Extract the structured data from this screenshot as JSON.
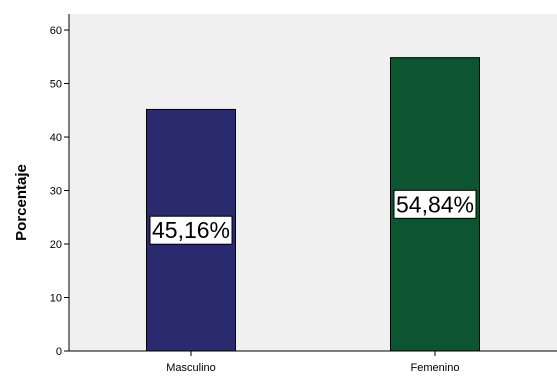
{
  "chart_data": {
    "type": "bar",
    "categories": [
      "Masculino",
      "Femenino"
    ],
    "values": [
      45.16,
      54.84
    ],
    "data_labels": [
      "45,16%",
      "54,84%"
    ],
    "xlabel": "",
    "ylabel": "Porcentaje",
    "ylim": [
      0,
      63
    ],
    "yticks": [
      0,
      10,
      20,
      30,
      40,
      50,
      60
    ],
    "grid": false,
    "colors": {
      "plot_background": "#f0f0f0",
      "bars": [
        "#2a2a6e",
        "#0d5530"
      ]
    }
  }
}
